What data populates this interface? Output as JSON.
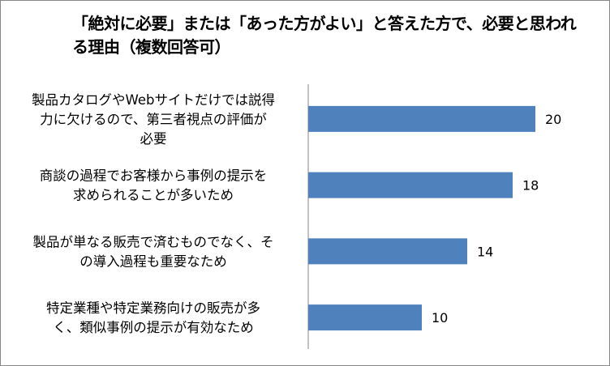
{
  "chart_data": {
    "type": "bar",
    "orientation": "horizontal",
    "title": "「絶対に必要」または「あった方がよい」と答えた方で、必要と思われる理由（複数回答可）",
    "categories": [
      [
        "製品カタログやWebサイトだけでは説得",
        "力に欠けるので、第三者視点の評価が",
        "必要"
      ],
      [
        "商談の過程でお客様から事例の提示を",
        "求められることが多いため"
      ],
      [
        "製品が単なる販売で済むものでなく、そ",
        "の導入過程も重要なため"
      ],
      [
        "特定業種や特定業務向けの販売が多",
        "く、類似事例の提示が有効なため"
      ]
    ],
    "values": [
      20,
      18,
      14,
      10
    ],
    "xlim": [
      0,
      20
    ],
    "bar_color": "#4F81BD",
    "grid": false,
    "legend": "none",
    "data_labels": true
  }
}
